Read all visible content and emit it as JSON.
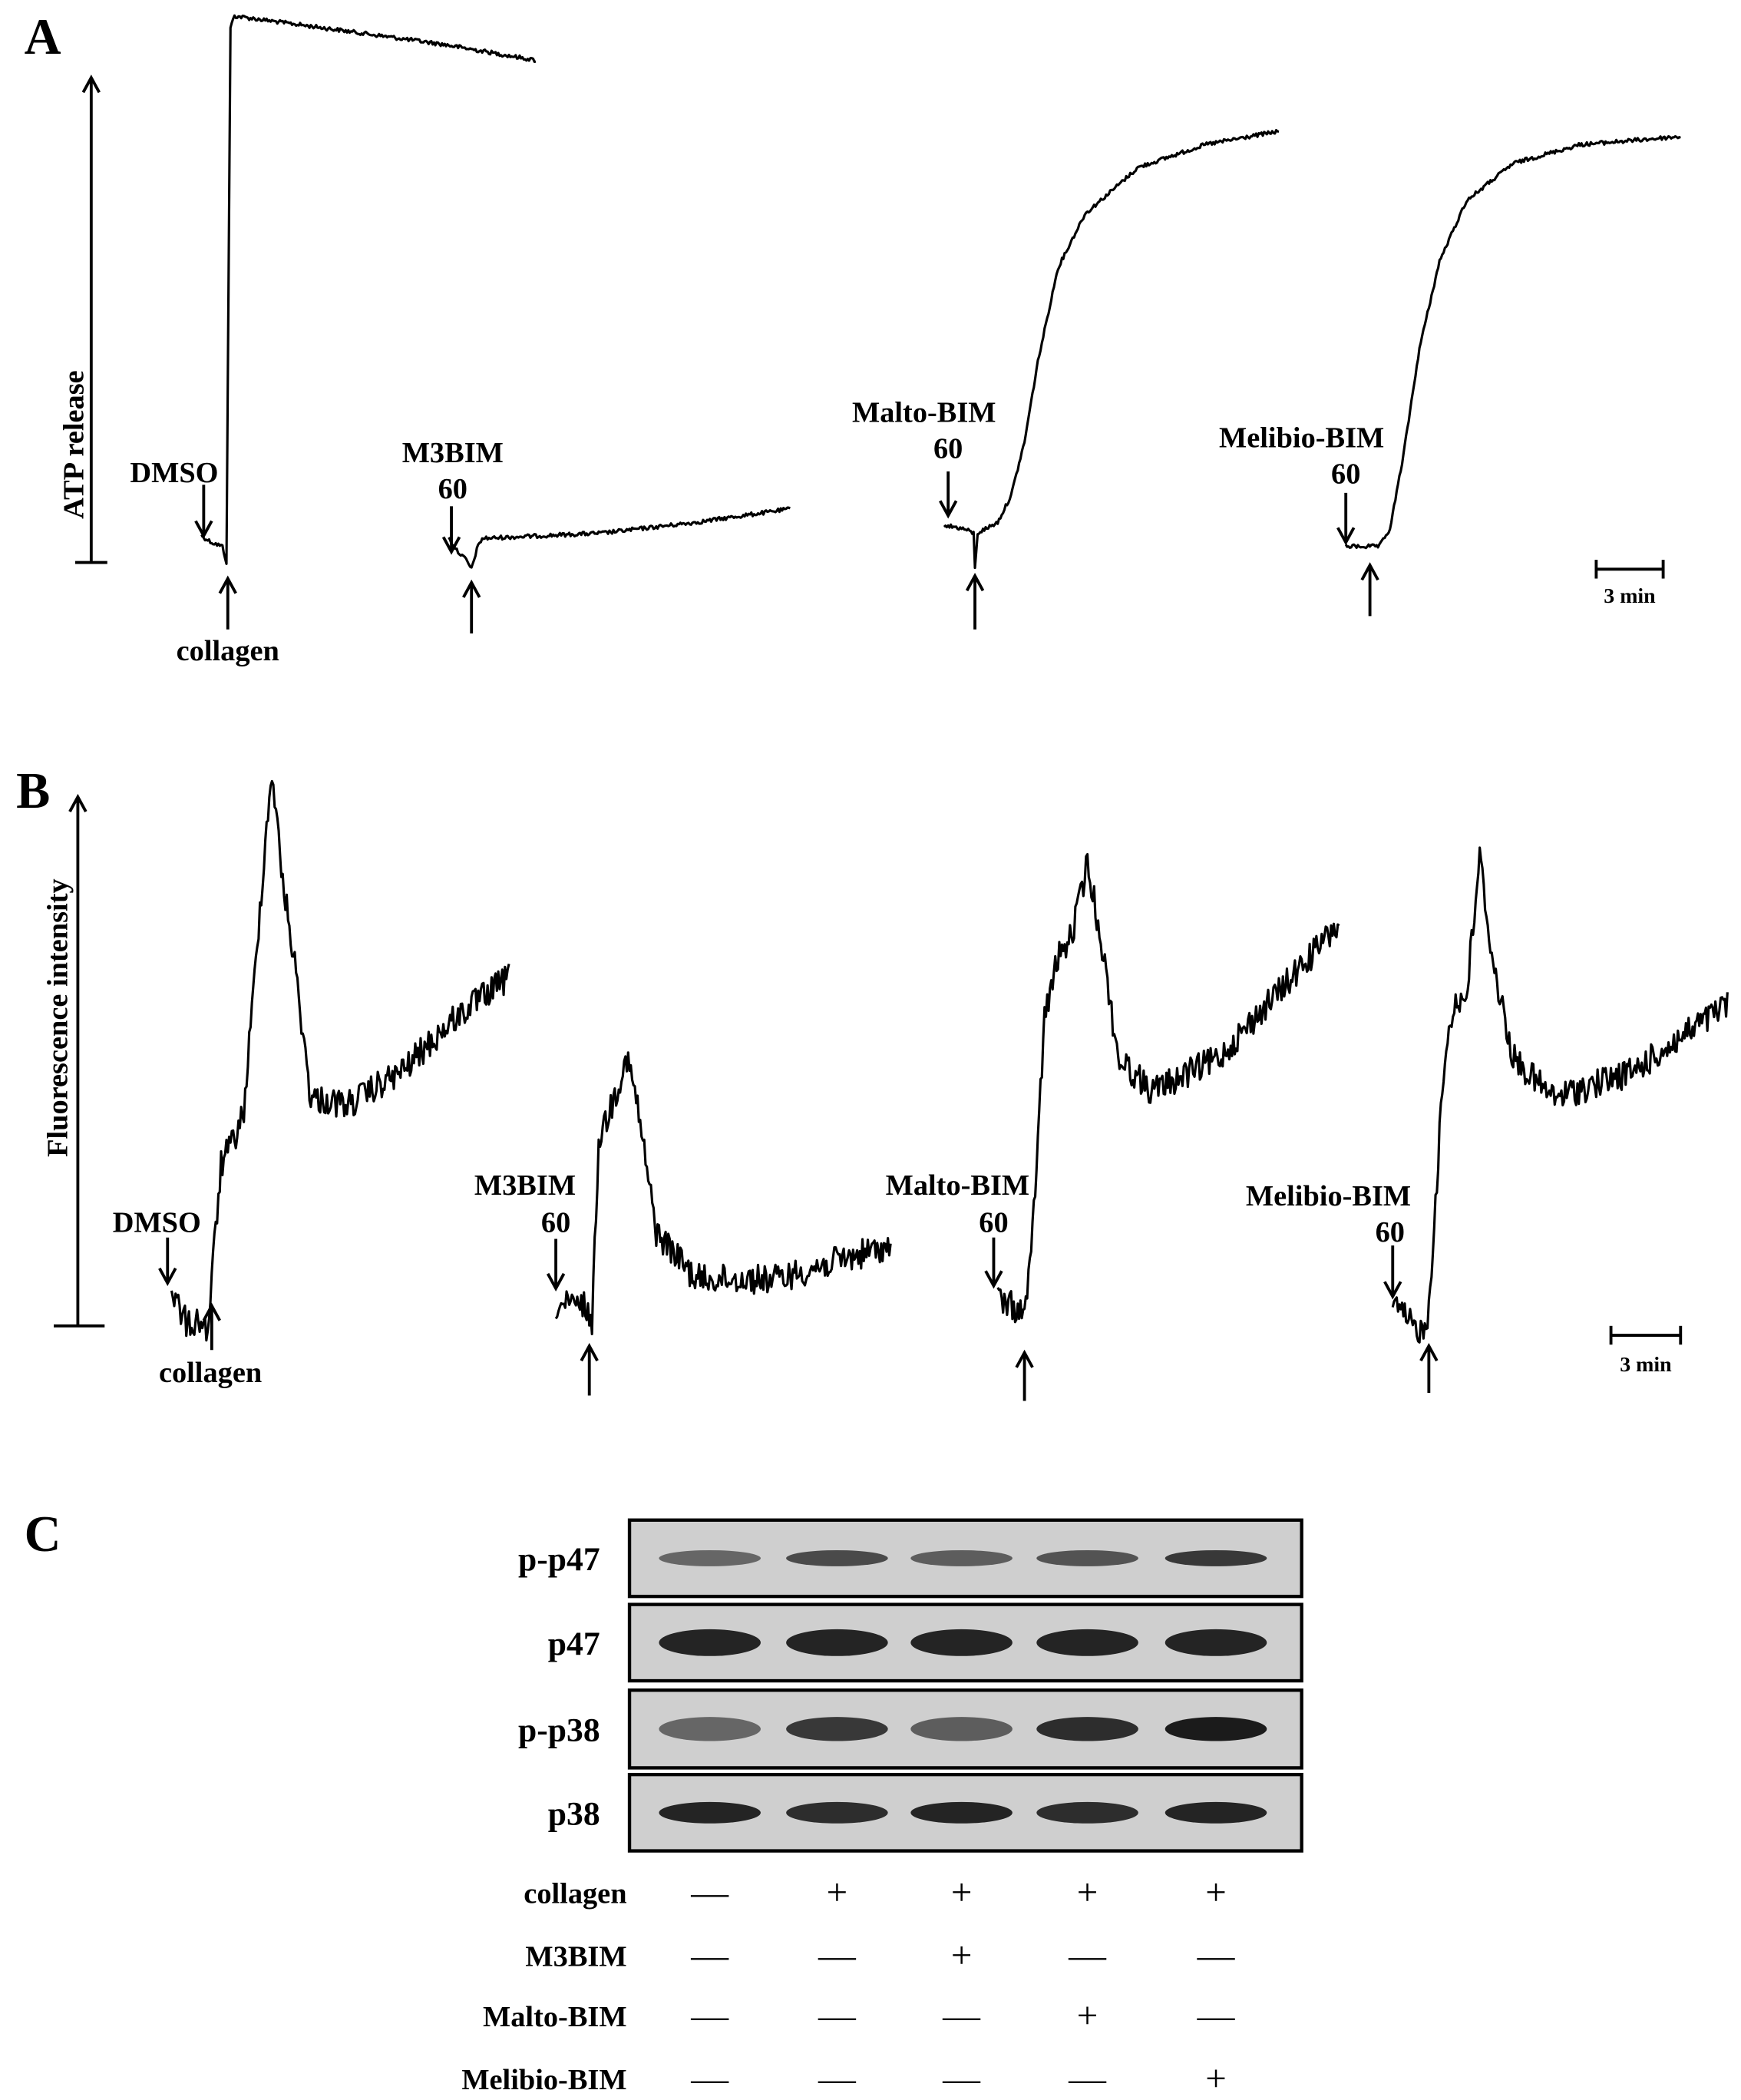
{
  "panel_a": {
    "label": "A",
    "axis_label": "ATP release",
    "stimulus": "collagen",
    "scale_bar": "3 min",
    "traces": [
      {
        "agent": "DMSO"
      },
      {
        "agent": "M3BIM",
        "dose": 60
      },
      {
        "agent": "Malto-BIM",
        "dose": 60
      },
      {
        "agent": "Melibio-BIM",
        "dose": 60
      }
    ]
  },
  "panel_b": {
    "label": "B",
    "axis_label": "Fluorescence intensity",
    "stimulus": "collagen",
    "scale_bar": "3 min",
    "traces": [
      {
        "agent": "DMSO"
      },
      {
        "agent": "M3BIM",
        "dose": 60
      },
      {
        "agent": "Malto-BIM",
        "dose": 60
      },
      {
        "agent": "Melibio-BIM",
        "dose": 60
      }
    ]
  },
  "panel_c": {
    "label": "C",
    "blots": [
      "p-p47",
      "p47",
      "p-p38",
      "p38"
    ],
    "conditions": [
      {
        "name": "collagen",
        "lanes": [
          "—",
          "+",
          "+",
          "+",
          "+"
        ]
      },
      {
        "name": "M3BIM",
        "lanes": [
          "—",
          "—",
          "+",
          "—",
          "—"
        ]
      },
      {
        "name": "Malto-BIM",
        "lanes": [
          "—",
          "—",
          "—",
          "+",
          "—"
        ]
      },
      {
        "name": "Melibio-BIM",
        "lanes": [
          "—",
          "—",
          "—",
          "—",
          "+"
        ]
      }
    ]
  }
}
